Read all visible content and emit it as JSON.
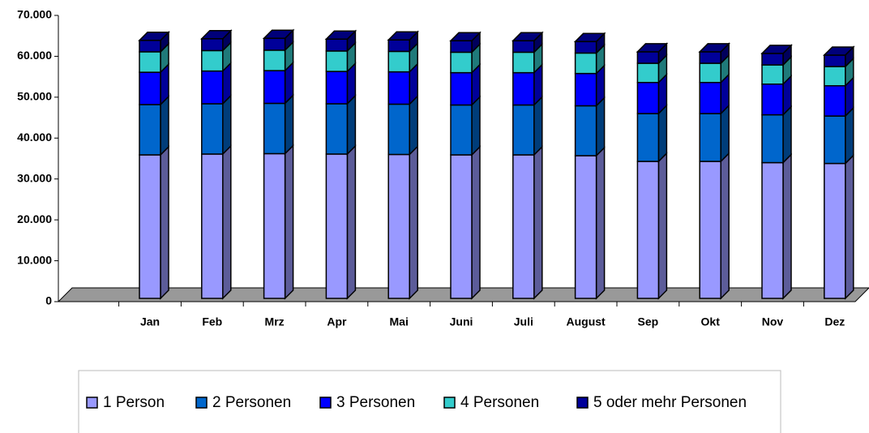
{
  "chart_data": {
    "type": "bar3d_stacked",
    "categories": [
      "Jan",
      "Feb",
      "Mrz",
      "Apr",
      "Mai",
      "Juni",
      "Juli",
      "August",
      "Sep",
      "Okt",
      "Nov",
      "Dez"
    ],
    "series": [
      {
        "name": "1 Person",
        "color": "#9999ff",
        "values": [
          35100,
          35300,
          35400,
          35300,
          35200,
          35100,
          35100,
          34900,
          33500,
          33500,
          33200,
          33000
        ]
      },
      {
        "name": "2 Personen",
        "color": "#0066cc",
        "values": [
          12300,
          12300,
          12300,
          12300,
          12300,
          12200,
          12200,
          12200,
          11700,
          11700,
          11700,
          11600
        ]
      },
      {
        "name": "3 Personen",
        "color": "#0000ff",
        "values": [
          7900,
          8000,
          8000,
          7900,
          7900,
          7900,
          7900,
          7900,
          7600,
          7600,
          7500,
          7400
        ]
      },
      {
        "name": "4 Personen",
        "color": "#33cccc",
        "values": [
          5000,
          5000,
          5000,
          5000,
          5000,
          5000,
          5000,
          5000,
          4700,
          4700,
          4700,
          4700
        ]
      },
      {
        "name": "5 oder mehr Personen",
        "color": "#000099",
        "values": [
          2800,
          2900,
          2900,
          2900,
          2800,
          2800,
          2800,
          2800,
          2800,
          2800,
          2800,
          2800
        ]
      }
    ],
    "ylim": [
      0,
      70000
    ],
    "yticks": [
      {
        "value": 0,
        "label": "0"
      },
      {
        "value": 10000,
        "label": "10.000"
      },
      {
        "value": 20000,
        "label": "20.000"
      },
      {
        "value": 30000,
        "label": "30.000"
      },
      {
        "value": 40000,
        "label": "40.000"
      },
      {
        "value": 50000,
        "label": "50.000"
      },
      {
        "value": 60000,
        "label": "60.000"
      },
      {
        "value": 70000,
        "label": "70.000"
      }
    ],
    "legend": "bottom"
  }
}
